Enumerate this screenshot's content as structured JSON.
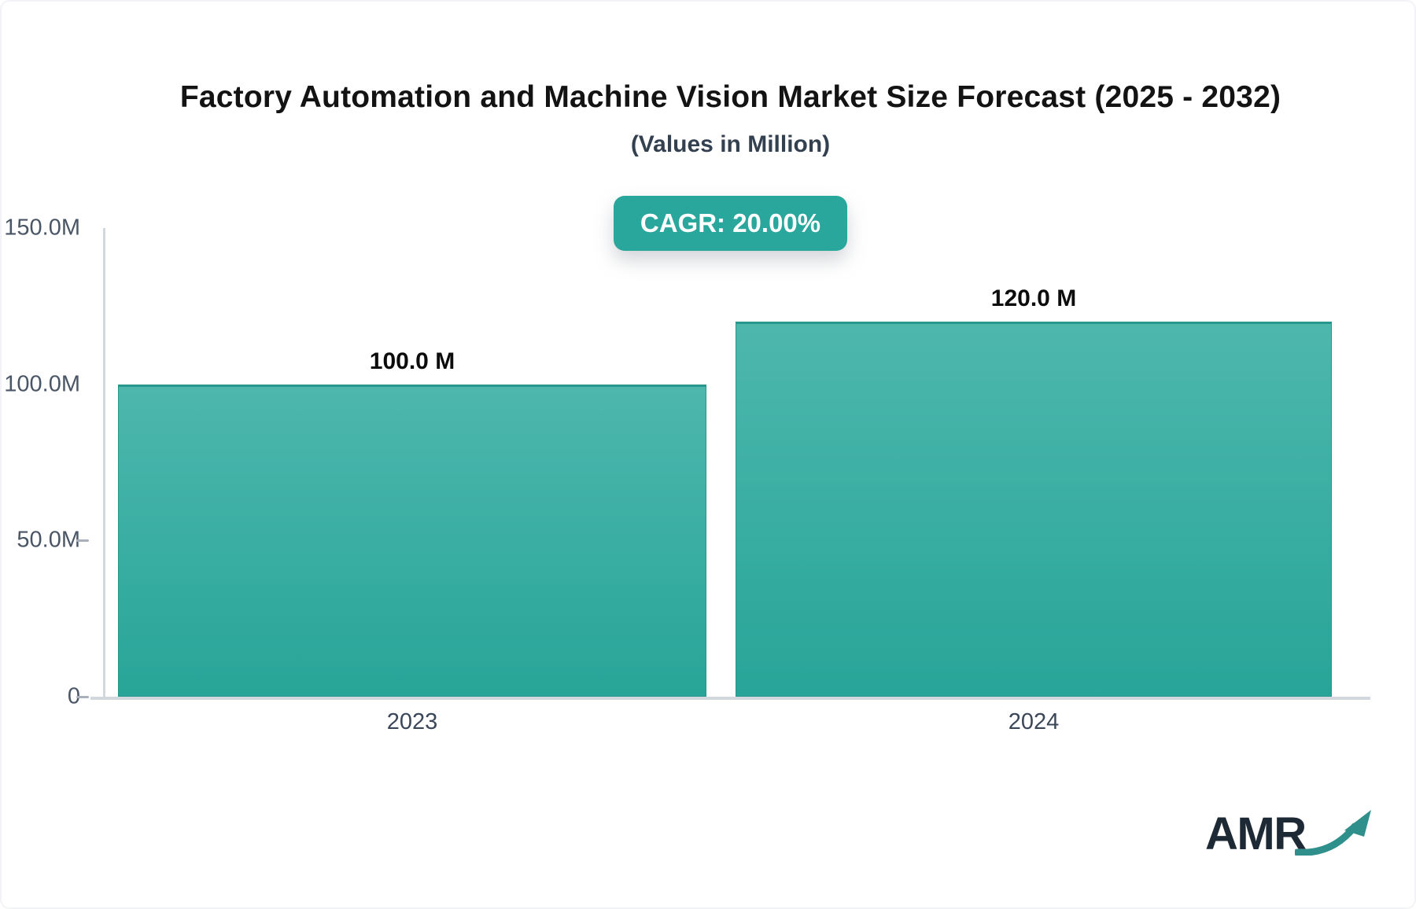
{
  "title": "Factory Automation and Machine Vision Market Size Forecast (2025 - 2032)",
  "subtitle": "(Values in Million)",
  "cagr": {
    "label": "CAGR: 20.00%"
  },
  "logo": {
    "text": "AMR",
    "arrow_icon": "trending-up-arrow-icon"
  },
  "colors": {
    "badge_bg": "#2aa79c",
    "bar_top": "#4db7ad",
    "bar_bottom": "#28a598",
    "bar_border": "#27968d",
    "axis_line": "#d3d7de",
    "tick_text": "#4a5665",
    "logo_text": "#1d2935",
    "logo_arrow": "#2f8f8a"
  },
  "chart_data": {
    "type": "bar",
    "title": "Factory Automation and Machine Vision Market Size Forecast (2025 - 2032)",
    "subtitle": "(Values in Million)",
    "unit": "Million",
    "categories": [
      "2023",
      "2024"
    ],
    "values": [
      100.0,
      120.0
    ],
    "bar_labels": [
      "100.0 M",
      "120.0 M"
    ],
    "ylim": [
      0,
      150
    ],
    "yticks": [
      {
        "value": 150,
        "label": "150.0M",
        "dash": false
      },
      {
        "value": 100,
        "label": "100.0M",
        "dash": false
      },
      {
        "value": 50,
        "label": "50.0M",
        "dash": true
      },
      {
        "value": 0,
        "label": "0",
        "dash": true
      }
    ],
    "grid": false,
    "legend": false,
    "annotations": [
      "CAGR: 20.00%"
    ]
  }
}
